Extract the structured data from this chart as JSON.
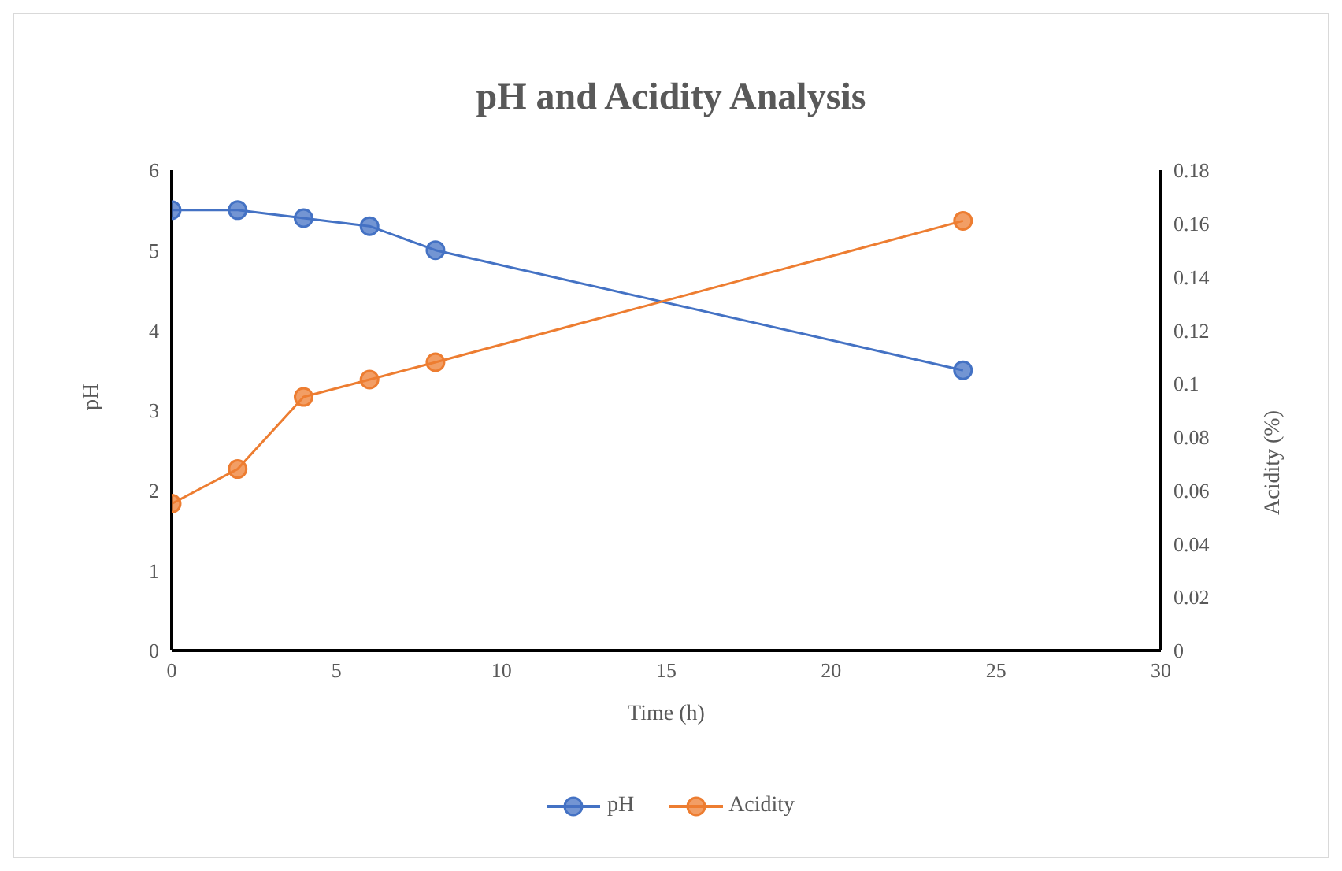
{
  "chart_data": {
    "type": "line",
    "title": "pH and Acidity Analysis",
    "xlabel": "Time (h)",
    "ylabel": "pH",
    "y2label": "Acidity (%)",
    "x": [
      0,
      2,
      4,
      6,
      8,
      24
    ],
    "series": [
      {
        "name": "pH",
        "color": "#4472c4",
        "values": [
          5.5,
          5.5,
          5.4,
          5.3,
          5.0,
          3.5
        ]
      },
      {
        "name": "Acidity",
        "color": "#ed7d31",
        "axis": "y2",
        "values": [
          0.055,
          0.068,
          0.095,
          0.1015,
          0.108,
          0.161
        ]
      }
    ],
    "xlim": [
      0,
      30
    ],
    "xticks": [
      0,
      5,
      10,
      15,
      20,
      25,
      30
    ],
    "ylim": [
      0,
      6
    ],
    "yticks": [
      0,
      1,
      2,
      3,
      4,
      5,
      6
    ],
    "y2lim": [
      0,
      0.18
    ],
    "y2ticks": [
      0,
      0.02,
      0.04,
      0.06,
      0.08,
      0.1,
      0.12,
      0.14,
      0.16,
      0.18
    ],
    "grid": false,
    "legend": "bottom",
    "marker": "circle",
    "line_style": "solid"
  }
}
